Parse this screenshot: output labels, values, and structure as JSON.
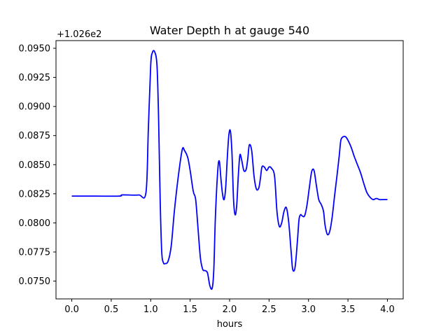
{
  "chart_data": {
    "type": "line",
    "title": "Water Depth h at gauge 540",
    "xlabel": "hours",
    "ylabel": "",
    "y_offset_label": "+1.026e2",
    "xlim": [
      -0.2,
      4.2
    ],
    "ylim": [
      0.07347,
      0.09566
    ],
    "xticks": [
      0.0,
      0.5,
      1.0,
      1.5,
      2.0,
      2.5,
      3.0,
      3.5,
      4.0
    ],
    "xtick_labels": [
      "0.0",
      "0.5",
      "1.0",
      "1.5",
      "2.0",
      "2.5",
      "3.0",
      "3.5",
      "4.0"
    ],
    "yticks": [
      0.075,
      0.0775,
      0.08,
      0.0825,
      0.085,
      0.0875,
      0.09,
      0.0925,
      0.095
    ],
    "ytick_labels": [
      "0.0750",
      "0.0775",
      "0.0800",
      "0.0825",
      "0.0850",
      "0.0875",
      "0.0900",
      "0.0925",
      "0.0950"
    ],
    "grid": false,
    "line_color": "#0000ff",
    "series": [
      {
        "x": [
          0.0,
          0.3,
          0.6,
          0.63,
          0.7,
          0.85,
          0.94,
          0.97,
          1.0,
          1.02,
          1.05,
          1.08,
          1.1,
          1.12,
          1.14,
          1.16,
          1.18,
          1.22,
          1.26,
          1.3,
          1.35,
          1.4,
          1.43,
          1.47,
          1.5,
          1.54,
          1.57,
          1.6,
          1.63,
          1.66,
          1.69,
          1.72,
          1.75,
          1.78,
          1.8,
          1.82,
          1.85,
          1.87,
          1.89,
          1.91,
          1.93,
          1.95,
          1.97,
          1.99,
          2.01,
          2.03,
          2.05,
          2.07,
          2.09,
          2.11,
          2.13,
          2.15,
          2.18,
          2.21,
          2.23,
          2.25,
          2.28,
          2.31,
          2.34,
          2.37,
          2.39,
          2.41,
          2.44,
          2.47,
          2.5,
          2.53,
          2.57,
          2.6,
          2.63,
          2.66,
          2.69,
          2.72,
          2.75,
          2.78,
          2.8,
          2.83,
          2.86,
          2.88,
          2.9,
          2.92,
          2.95,
          2.98,
          3.01,
          3.04,
          3.07,
          3.1,
          3.13,
          3.16,
          3.19,
          3.21,
          3.24,
          3.27,
          3.3,
          3.33,
          3.36,
          3.39,
          3.41,
          3.44,
          3.47,
          3.5,
          3.54,
          3.58,
          3.62,
          3.66,
          3.7,
          3.74,
          3.78,
          3.82,
          3.86,
          3.9,
          3.94,
          3.97,
          4.0
        ],
        "y": [
          0.0823,
          0.0823,
          0.0823,
          0.0824,
          0.0824,
          0.0824,
          0.0826,
          0.088,
          0.0935,
          0.0946,
          0.0947,
          0.0935,
          0.089,
          0.082,
          0.0775,
          0.0766,
          0.0765,
          0.0767,
          0.078,
          0.081,
          0.084,
          0.0863,
          0.0862,
          0.0856,
          0.0845,
          0.0827,
          0.082,
          0.0795,
          0.077,
          0.076,
          0.0759,
          0.0757,
          0.0746,
          0.0744,
          0.076,
          0.0805,
          0.0845,
          0.0853,
          0.0838,
          0.0825,
          0.082,
          0.083,
          0.0855,
          0.0875,
          0.0879,
          0.086,
          0.082,
          0.0807,
          0.0815,
          0.084,
          0.0858,
          0.0855,
          0.0845,
          0.0846,
          0.0855,
          0.0867,
          0.0862,
          0.084,
          0.0829,
          0.083,
          0.0838,
          0.0848,
          0.0848,
          0.0845,
          0.0848,
          0.0847,
          0.084,
          0.081,
          0.0797,
          0.08,
          0.081,
          0.0813,
          0.08,
          0.0775,
          0.076,
          0.0762,
          0.0785,
          0.0803,
          0.0807,
          0.0806,
          0.0806,
          0.0815,
          0.083,
          0.0844,
          0.0845,
          0.0832,
          0.082,
          0.0816,
          0.081,
          0.0798,
          0.079,
          0.0793,
          0.0805,
          0.0823,
          0.084,
          0.0858,
          0.0871,
          0.0874,
          0.0874,
          0.0871,
          0.0865,
          0.0857,
          0.085,
          0.0843,
          0.0834,
          0.0826,
          0.0822,
          0.082,
          0.0821,
          0.082,
          0.082,
          0.082,
          0.082
        ]
      }
    ]
  }
}
